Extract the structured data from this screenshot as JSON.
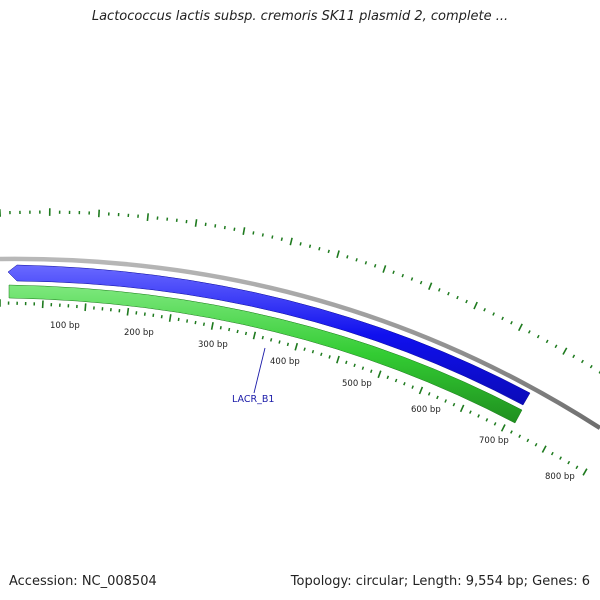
{
  "title": "Lactococcus lactis subsp. cremoris SK11 plasmid 2, complete ...",
  "footer": {
    "accession": "Accession: NC_008504",
    "summary": "Topology: circular; Length: 9,554 bp; Genes: 6"
  },
  "plasmid": {
    "length_bp": 9554,
    "topology": "circular",
    "gene_count": 6
  },
  "genes": [
    {
      "name": "LACR_B1",
      "start_bp": 0,
      "end_bp": 720,
      "strand": "reverse",
      "color": "#1010ee"
    }
  ],
  "cds": [
    {
      "start_bp": 0,
      "end_bp": 700,
      "strand": "forward",
      "color": "#33cc33"
    }
  ],
  "ruler": {
    "labels": [
      "100 bp",
      "200 bp",
      "300 bp",
      "400 bp",
      "500 bp",
      "600 bp",
      "700 bp",
      "800 bp"
    ],
    "label_values_bp": [
      100,
      200,
      300,
      400,
      500,
      600,
      700,
      800
    ]
  },
  "colors": {
    "backbone": "#888888",
    "gene_reverse": "#1010ee",
    "gene_forward": "#33cc33",
    "tick": "#1e7a1e",
    "gene_label": "#1a1aa8"
  }
}
